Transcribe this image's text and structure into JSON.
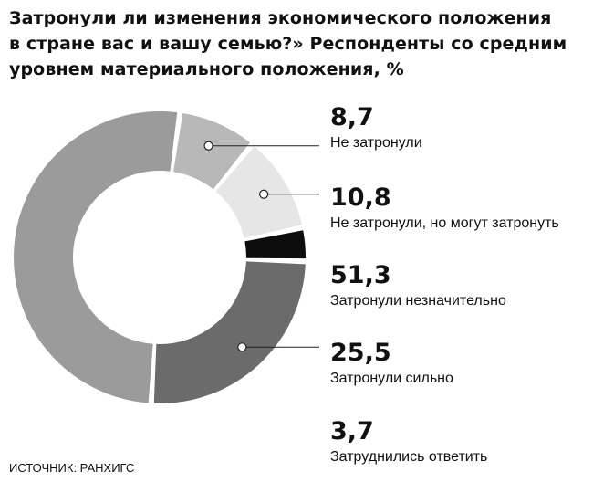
{
  "chart_data": {
    "type": "pie",
    "title_lines": [
      "Затронули ли изменения экономического положения",
      "в стране вас и вашу семью?» Респонденты со средним",
      "уровнем материального положения, %"
    ],
    "slices": [
      {
        "label": "Не затронули",
        "value": 8.7,
        "value_text": "8,7",
        "color": "#b8b8b8"
      },
      {
        "label": "Не затронули, но могут затронуть",
        "value": 10.8,
        "value_text": "10,8",
        "color": "#e6e6e6"
      },
      {
        "label": "Затронули незначительно",
        "value": 51.3,
        "value_text": "51,3",
        "color": "#9b9b9b"
      },
      {
        "label": "Затронули сильно",
        "value": 25.5,
        "value_text": "25,5",
        "color": "#6b6b6b"
      },
      {
        "label": "Затруднились ответить",
        "value": 3.7,
        "value_text": "3,7",
        "color": "#0d0d0d"
      }
    ],
    "slice_draw_order": [
      "Не затронули",
      "Не затронули, но могут затронуть",
      "Затруднились ответить",
      "Затронули сильно",
      "Затронули незначительно"
    ],
    "donut": true,
    "legend_placement": "right"
  },
  "source": "ИСТОЧНИК: РАНХИГС"
}
